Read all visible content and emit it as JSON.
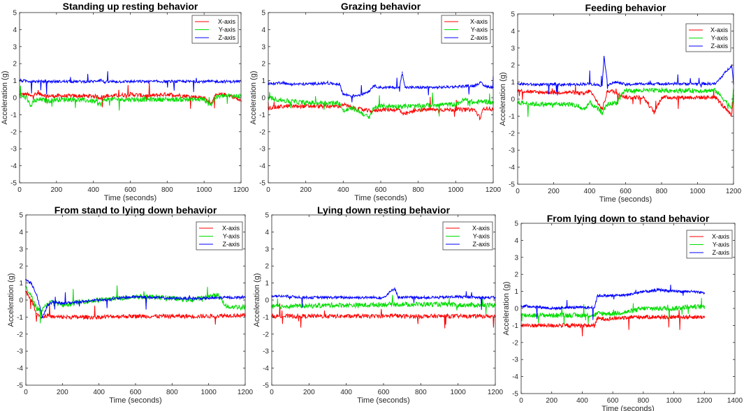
{
  "figure": {
    "legend_labels": [
      "X-axis",
      "Y-axis",
      "Z-axis"
    ],
    "colors": {
      "x": "#ff0000",
      "y": "#00dd00",
      "z": "#0000ff",
      "axis": "#262626",
      "background": "#ffffff"
    }
  },
  "chart_data": [
    {
      "type": "line",
      "title": "Standing up resting behavior",
      "xlabel": "Time (seconds)",
      "ylabel": "Acceleration (g)",
      "xlim": [
        0,
        1200
      ],
      "ylim": [
        -5,
        5
      ],
      "xticks": [
        0,
        200,
        400,
        600,
        800,
        1000,
        1200
      ],
      "yticks": [
        -5,
        -4,
        -3,
        -2,
        -1,
        0,
        1,
        2,
        3,
        4,
        5
      ],
      "legend_position": "top-right",
      "series": [
        {
          "name": "X-axis",
          "color": "#ff0000",
          "x": [
            0,
            40,
            60,
            80,
            120,
            150,
            200,
            300,
            400,
            440,
            460,
            500,
            600,
            700,
            800,
            900,
            1000,
            1020,
            1040,
            1060,
            1100,
            1150,
            1200
          ],
          "y": [
            0.2,
            0.2,
            0.1,
            0.2,
            0.2,
            0.1,
            0.1,
            0.1,
            0.1,
            0.0,
            0.1,
            0.1,
            0.2,
            0.1,
            0.2,
            0.1,
            0.0,
            -0.2,
            -0.3,
            0.1,
            0.2,
            0.1,
            -0.2
          ]
        },
        {
          "name": "Y-axis",
          "color": "#00dd00",
          "x": [
            0,
            40,
            60,
            80,
            120,
            150,
            200,
            300,
            400,
            440,
            460,
            500,
            600,
            700,
            800,
            900,
            1000,
            1020,
            1040,
            1060,
            1100,
            1150,
            1200
          ],
          "y": [
            0.1,
            0.0,
            -0.5,
            -0.2,
            -0.1,
            -0.2,
            -0.1,
            -0.1,
            -0.2,
            -0.4,
            -0.1,
            -0.1,
            -0.1,
            -0.1,
            -0.1,
            -0.1,
            -0.1,
            -0.3,
            -0.4,
            0.0,
            0.1,
            0.1,
            0.1
          ]
        },
        {
          "name": "Z-axis",
          "color": "#0000ff",
          "x": [
            0,
            100,
            200,
            300,
            400,
            440,
            460,
            500,
            600,
            700,
            800,
            900,
            1000,
            1100,
            1200
          ],
          "y": [
            1.0,
            0.95,
            0.95,
            0.95,
            0.95,
            1.05,
            0.9,
            0.95,
            0.95,
            0.95,
            0.95,
            0.95,
            0.95,
            0.95,
            0.95
          ]
        }
      ]
    },
    {
      "type": "line",
      "title": "Grazing behavior",
      "xlabel": "Time (seconds)",
      "ylabel": "Acceleration (g)",
      "xlim": [
        0,
        1200
      ],
      "ylim": [
        -5,
        5
      ],
      "xticks": [
        0,
        200,
        400,
        600,
        800,
        1000,
        1200
      ],
      "yticks": [
        -5,
        -4,
        -3,
        -2,
        -1,
        0,
        1,
        2,
        3,
        4,
        5
      ],
      "legend_position": "top-right",
      "series": [
        {
          "name": "X-axis",
          "color": "#ff0000",
          "x": [
            0,
            100,
            200,
            300,
            380,
            400,
            450,
            500,
            550,
            600,
            700,
            720,
            800,
            900,
            1000,
            1100,
            1130,
            1150,
            1200
          ],
          "y": [
            -0.6,
            -0.5,
            -0.5,
            -0.5,
            -0.5,
            -0.4,
            -0.6,
            -0.7,
            -0.8,
            -0.7,
            -0.7,
            -1.0,
            -0.7,
            -0.7,
            -0.7,
            -0.7,
            -1.2,
            -0.6,
            -0.7
          ]
        },
        {
          "name": "Y-axis",
          "color": "#00dd00",
          "x": [
            0,
            100,
            200,
            300,
            380,
            400,
            450,
            500,
            540,
            560,
            600,
            700,
            800,
            900,
            1000,
            1050,
            1100,
            1150,
            1200
          ],
          "y": [
            0.0,
            -0.2,
            -0.3,
            -0.3,
            -0.3,
            -0.8,
            -0.6,
            -0.9,
            -1.2,
            -0.6,
            -0.5,
            -0.5,
            -0.5,
            -0.4,
            -0.4,
            -0.1,
            -0.3,
            -0.2,
            -0.3
          ]
        },
        {
          "name": "Z-axis",
          "color": "#0000ff",
          "x": [
            0,
            80,
            100,
            200,
            300,
            380,
            400,
            450,
            500,
            540,
            560,
            600,
            700,
            715,
            730,
            800,
            900,
            1000,
            1100,
            1130,
            1150,
            1200
          ],
          "y": [
            0.8,
            0.9,
            0.8,
            0.8,
            0.85,
            0.8,
            0.2,
            0.1,
            0.2,
            0.4,
            0.7,
            0.6,
            0.6,
            1.5,
            0.6,
            0.6,
            0.6,
            0.65,
            0.7,
            0.9,
            0.7,
            0.6
          ]
        }
      ]
    },
    {
      "type": "line",
      "title": "Feeding behavior",
      "xlabel": "Time (seconds)",
      "ylabel": "Acceleration (g)",
      "xlim": [
        0,
        1200
      ],
      "ylim": [
        -5,
        5
      ],
      "xticks": [
        0,
        200,
        400,
        600,
        800,
        1000,
        1200
      ],
      "yticks": [
        -5,
        -4,
        -3,
        -2,
        -1,
        0,
        1,
        2,
        3,
        4,
        5
      ],
      "legend_position": "top-right",
      "series": [
        {
          "name": "X-axis",
          "color": "#ff0000",
          "x": [
            0,
            100,
            200,
            300,
            370,
            400,
            470,
            500,
            550,
            600,
            700,
            760,
            800,
            900,
            1000,
            1100,
            1190,
            1200
          ],
          "y": [
            0.5,
            0.4,
            0.4,
            0.4,
            0.3,
            0.5,
            -0.6,
            0.5,
            0.4,
            0.1,
            0.1,
            -0.8,
            0.1,
            0.1,
            0.1,
            0.1,
            -1.0,
            0.2
          ]
        },
        {
          "name": "Y-axis",
          "color": "#00dd00",
          "x": [
            0,
            100,
            200,
            300,
            370,
            400,
            470,
            500,
            550,
            600,
            700,
            800,
            900,
            1000,
            1100,
            1190,
            1200
          ],
          "y": [
            -0.2,
            -0.3,
            -0.3,
            -0.3,
            -0.6,
            -0.2,
            -0.8,
            -0.3,
            -0.2,
            0.5,
            0.5,
            0.5,
            0.5,
            0.5,
            0.5,
            -0.5,
            0.5
          ]
        },
        {
          "name": "Z-axis",
          "color": "#0000ff",
          "x": [
            0,
            100,
            200,
            300,
            400,
            470,
            480,
            500,
            550,
            600,
            700,
            800,
            900,
            1000,
            1100,
            1190,
            1200
          ],
          "y": [
            0.9,
            0.85,
            0.85,
            0.85,
            0.9,
            0.8,
            2.5,
            0.85,
            1.0,
            0.85,
            0.9,
            0.9,
            0.9,
            0.9,
            0.9,
            2.0,
            0.9
          ]
        }
      ]
    },
    {
      "type": "line",
      "title": "From stand to lying down behavior",
      "xlabel": "Time (seconds)",
      "ylabel": "Acceleration (g)",
      "xlim": [
        0,
        1200
      ],
      "ylim": [
        -5,
        5
      ],
      "xticks": [
        0,
        200,
        400,
        600,
        800,
        1000,
        1200
      ],
      "yticks": [
        -5,
        -4,
        -3,
        -2,
        -1,
        0,
        1,
        2,
        3,
        4,
        5
      ],
      "legend_position": "top-right",
      "series": [
        {
          "name": "X-axis",
          "color": "#ff0000",
          "x": [
            0,
            30,
            60,
            90,
            120,
            150,
            200,
            300,
            400,
            500,
            600,
            700,
            800,
            900,
            1000,
            1100,
            1200
          ],
          "y": [
            0.5,
            0.0,
            -0.8,
            -1.0,
            -0.9,
            -1.0,
            -1.0,
            -1.0,
            -1.0,
            -0.95,
            -0.95,
            -0.95,
            -0.95,
            -0.95,
            -0.95,
            -0.9,
            -0.9
          ]
        },
        {
          "name": "Y-axis",
          "color": "#00dd00",
          "x": [
            0,
            30,
            60,
            90,
            120,
            150,
            200,
            300,
            400,
            500,
            600,
            700,
            800,
            900,
            1000,
            1050,
            1100,
            1200
          ],
          "y": [
            0.8,
            0.2,
            -0.5,
            -0.6,
            -0.2,
            -0.1,
            -0.3,
            -0.1,
            0.0,
            0.1,
            0.2,
            0.2,
            0.1,
            0.0,
            0.2,
            0.3,
            -0.4,
            -0.4
          ]
        },
        {
          "name": "Z-axis",
          "color": "#0000ff",
          "x": [
            0,
            30,
            60,
            90,
            120,
            150,
            200,
            300,
            400,
            500,
            600,
            700,
            800,
            900,
            1000,
            1100,
            1200
          ],
          "y": [
            1.2,
            1.0,
            0.3,
            -1.0,
            -0.3,
            -0.1,
            -0.2,
            -0.1,
            0.0,
            0.1,
            0.2,
            0.15,
            0.1,
            0.1,
            0.1,
            0.15,
            0.15
          ]
        }
      ]
    },
    {
      "type": "line",
      "title": "Lying down resting behavior",
      "xlabel": "Time (seconds)",
      "ylabel": "Acceleration (g)",
      "xlim": [
        0,
        1200
      ],
      "ylim": [
        -5,
        5
      ],
      "xticks": [
        0,
        200,
        400,
        600,
        800,
        1000,
        1200
      ],
      "yticks": [
        -5,
        -4,
        -3,
        -2,
        -1,
        0,
        1,
        2,
        3,
        4,
        5
      ],
      "legend_position": "top-right",
      "series": [
        {
          "name": "X-axis",
          "color": "#ff0000",
          "x": [
            0,
            100,
            200,
            300,
            400,
            500,
            600,
            650,
            700,
            800,
            900,
            1000,
            1100,
            1200
          ],
          "y": [
            -0.95,
            -0.95,
            -0.95,
            -0.95,
            -0.95,
            -0.95,
            -0.95,
            -0.9,
            -0.95,
            -0.95,
            -0.95,
            -0.95,
            -0.95,
            -0.95
          ]
        },
        {
          "name": "Y-axis",
          "color": "#00dd00",
          "x": [
            0,
            100,
            200,
            300,
            400,
            500,
            600,
            700,
            800,
            900,
            1000,
            1100,
            1200
          ],
          "y": [
            -0.4,
            -0.35,
            -0.35,
            -0.3,
            -0.3,
            -0.3,
            -0.25,
            -0.25,
            -0.25,
            -0.25,
            -0.3,
            -0.3,
            -0.3
          ]
        },
        {
          "name": "Z-axis",
          "color": "#0000ff",
          "x": [
            0,
            100,
            200,
            300,
            400,
            500,
            600,
            660,
            680,
            700,
            800,
            900,
            1000,
            1100,
            1200
          ],
          "y": [
            0.25,
            0.2,
            0.15,
            0.15,
            0.15,
            0.15,
            0.15,
            0.7,
            0.15,
            0.15,
            0.15,
            0.15,
            0.2,
            0.15,
            0.15
          ]
        }
      ]
    },
    {
      "type": "line",
      "title": "From  lying down to stand behavior",
      "xlabel": "Time (seconds)",
      "ylabel": "Acceleration (g)",
      "xlim": [
        0,
        1400
      ],
      "ylim": [
        -5,
        5
      ],
      "xticks": [
        0,
        200,
        400,
        600,
        800,
        1000,
        1200,
        1400
      ],
      "yticks": [
        -5,
        -4,
        -3,
        -2,
        -1,
        0,
        1,
        2,
        3,
        4,
        5
      ],
      "legend_position": "top-right",
      "series": [
        {
          "name": "X-axis",
          "color": "#ff0000",
          "x": [
            0,
            100,
            200,
            300,
            400,
            480,
            500,
            600,
            700,
            800,
            900,
            1000,
            1100,
            1200
          ],
          "y": [
            -1.0,
            -1.0,
            -1.0,
            -1.0,
            -1.0,
            -1.0,
            -0.6,
            -0.6,
            -0.5,
            -0.5,
            -0.5,
            -0.5,
            -0.5,
            -0.5
          ]
        },
        {
          "name": "Y-axis",
          "color": "#00dd00",
          "x": [
            0,
            100,
            200,
            300,
            400,
            480,
            500,
            600,
            700,
            800,
            900,
            1000,
            1100,
            1200
          ],
          "y": [
            -0.4,
            -0.4,
            -0.4,
            -0.4,
            -0.4,
            -0.4,
            -0.3,
            -0.3,
            -0.2,
            0.0,
            0.0,
            0.0,
            0.1,
            0.1
          ]
        },
        {
          "name": "Z-axis",
          "color": "#0000ff",
          "x": [
            0,
            100,
            200,
            300,
            400,
            480,
            500,
            600,
            700,
            800,
            850,
            900,
            1000,
            1100,
            1200
          ],
          "y": [
            0.15,
            0.1,
            0.0,
            0.05,
            0.05,
            0.05,
            0.75,
            0.75,
            0.8,
            1.0,
            1.0,
            1.1,
            1.0,
            1.0,
            0.9
          ]
        }
      ]
    }
  ]
}
